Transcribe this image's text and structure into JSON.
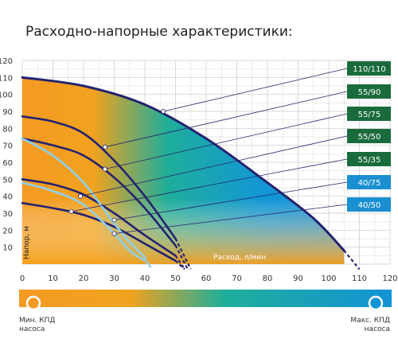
{
  "title": "Расходно-напорные характеристики:",
  "chart_data": {
    "type": "line",
    "xlabel": "Расход, л/мин",
    "ylabel": "Напор, м",
    "xlim": [
      0,
      120
    ],
    "ylim": [
      0,
      120
    ],
    "xticks": [
      0,
      10,
      20,
      30,
      40,
      50,
      60,
      70,
      80,
      90,
      100,
      110,
      120
    ],
    "yticks": [
      10,
      20,
      30,
      40,
      50,
      60,
      70,
      80,
      90,
      100,
      110,
      120
    ],
    "grid": true,
    "series": [
      {
        "name": "110/110",
        "color": "#1a6b3c",
        "curve": "#23236f",
        "points": [
          [
            0,
            110
          ],
          [
            20,
            105
          ],
          [
            40,
            94
          ],
          [
            60,
            74
          ],
          [
            80,
            48
          ],
          [
            95,
            27
          ],
          [
            105,
            8
          ],
          [
            110,
            -3
          ]
        ],
        "marker": [
          46,
          90
        ]
      },
      {
        "name": "55/90",
        "color": "#1a6b3c",
        "curve": "#23236f",
        "points": [
          [
            0,
            87
          ],
          [
            10,
            84
          ],
          [
            20,
            77
          ],
          [
            30,
            61
          ],
          [
            40,
            40
          ],
          [
            50,
            15
          ],
          [
            55,
            -3
          ]
        ],
        "marker": [
          27,
          69
        ]
      },
      {
        "name": "55/75",
        "color": "#1a6b3c",
        "curve": "#23236f",
        "points": [
          [
            0,
            74
          ],
          [
            10,
            70
          ],
          [
            20,
            64
          ],
          [
            30,
            51
          ],
          [
            40,
            33
          ],
          [
            50,
            11
          ],
          [
            54,
            -3
          ]
        ],
        "marker": [
          27,
          56
        ]
      },
      {
        "name": "55/50",
        "color": "#1a6b3c",
        "curve": "#23236f",
        "points": [
          [
            0,
            50
          ],
          [
            10,
            47
          ],
          [
            20,
            41
          ],
          [
            30,
            30
          ],
          [
            40,
            17
          ],
          [
            50,
            5
          ],
          [
            53,
            -3
          ]
        ],
        "marker": [
          19,
          40
        ]
      },
      {
        "name": "55/35",
        "color": "#1a6b3c",
        "curve": "#23236f",
        "points": [
          [
            0,
            36
          ],
          [
            10,
            33
          ],
          [
            20,
            29
          ],
          [
            30,
            22
          ],
          [
            40,
            12
          ],
          [
            50,
            2
          ],
          [
            53,
            -3
          ]
        ],
        "marker": [
          16,
          31
        ]
      },
      {
        "name": "40/75",
        "color": "#1a8fd1",
        "curve": "#8fd0ea",
        "points": [
          [
            0,
            74
          ],
          [
            10,
            64
          ],
          [
            20,
            48
          ],
          [
            30,
            24
          ],
          [
            35,
            13
          ],
          [
            40,
            4
          ],
          [
            42,
            -2
          ]
        ],
        "marker": [
          30,
          26
        ]
      },
      {
        "name": "40/50",
        "color": "#1a8fd1",
        "curve": "#8fd0ea",
        "points": [
          [
            0,
            48
          ],
          [
            10,
            43
          ],
          [
            20,
            35
          ],
          [
            30,
            18
          ],
          [
            35,
            8
          ],
          [
            40,
            2
          ],
          [
            42,
            -2
          ]
        ],
        "marker": [
          30,
          18
        ]
      }
    ]
  },
  "efficiency_bar": {
    "min_label": "Мин. КПД",
    "min_sub": "насоса",
    "max_label": "Макс. КПД",
    "max_sub": "насоса"
  }
}
